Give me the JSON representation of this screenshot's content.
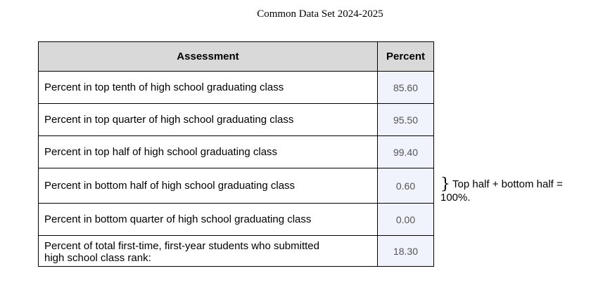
{
  "document": {
    "header": "Common Data Set 2024-2025"
  },
  "table": {
    "columns": [
      "Assessment",
      "Percent"
    ],
    "rows": [
      {
        "assessment": "Percent in top tenth of high school graduating class",
        "percent": "85.60"
      },
      {
        "assessment": "Percent in top quarter of high school graduating class",
        "percent": "95.50"
      },
      {
        "assessment": "Percent in top half of high school graduating class",
        "percent": "99.40"
      },
      {
        "assessment": "Percent in bottom half of high school graduating class",
        "percent": "0.60"
      },
      {
        "assessment": "Percent in bottom quarter of high school graduating class",
        "percent": "0.00"
      },
      {
        "assessment_line1": "Percent of total first-time, first-year students who submitted",
        "assessment_line2": "high school class rank:",
        "percent": "18.30"
      }
    ]
  },
  "note": {
    "brace": "}",
    "text": "Top half + bottom half = 100%."
  }
}
